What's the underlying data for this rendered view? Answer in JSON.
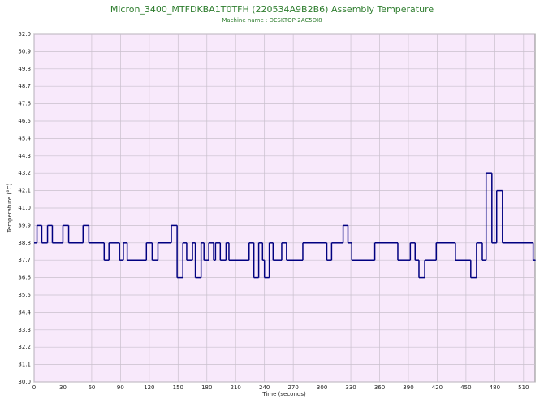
{
  "chart_data": {
    "type": "step-line",
    "title": "Micron_3400_MTFDKBA1T0TFH (220534A9B2B6) Assembly Temperature",
    "subtitle": "Machine name : DESKTOP-2AC5DI8",
    "x_label": "Time (seconds)",
    "y_label": "Temperature (°C)",
    "xlim": [
      0,
      522
    ],
    "ylim": [
      30,
      52
    ],
    "xticks": [
      0,
      30,
      60,
      90,
      120,
      150,
      180,
      210,
      240,
      270,
      300,
      330,
      360,
      390,
      420,
      450,
      480,
      510
    ],
    "yticks": [
      {
        "value": 30,
        "label": "30.0"
      },
      31.1,
      32.2,
      33.3,
      34.4,
      35.5,
      36.6,
      37.7,
      38.8,
      39.9,
      {
        "value": 41,
        "label": "41.0"
      },
      42.1,
      43.2,
      44.3,
      45.4,
      46.5,
      47.6,
      48.7,
      49.8,
      50.9,
      {
        "value": 52,
        "label": "52.0"
      }
    ],
    "grid": true,
    "color": "#000080",
    "x": [
      0,
      3,
      8,
      14,
      19,
      30,
      36,
      51,
      57,
      73,
      78,
      89,
      93,
      97,
      117,
      123,
      129,
      143,
      149,
      155,
      159,
      165,
      168,
      174,
      177,
      182,
      187,
      189,
      194,
      200,
      203,
      224,
      229,
      234,
      238,
      240,
      245,
      249,
      258,
      263,
      280,
      305,
      310,
      322,
      327,
      331,
      355,
      379,
      392,
      397,
      401,
      407,
      419,
      439,
      455,
      461,
      467,
      471,
      477,
      482,
      488,
      520,
      522
    ],
    "values": [
      38.8,
      39.9,
      38.8,
      39.9,
      38.8,
      39.9,
      38.8,
      39.9,
      38.8,
      37.7,
      38.8,
      37.7,
      38.8,
      37.7,
      38.8,
      37.7,
      38.8,
      39.9,
      36.6,
      38.8,
      37.7,
      38.8,
      36.6,
      38.8,
      37.7,
      38.8,
      37.7,
      38.8,
      37.7,
      38.8,
      37.7,
      38.8,
      36.6,
      38.8,
      37.7,
      36.6,
      38.8,
      37.7,
      38.8,
      37.7,
      38.8,
      37.7,
      38.8,
      39.9,
      38.8,
      37.7,
      38.8,
      37.7,
      38.8,
      37.7,
      36.6,
      37.7,
      38.8,
      37.7,
      36.6,
      38.8,
      37.7,
      43.2,
      38.8,
      42.1,
      38.8,
      37.7,
      37.7
    ]
  }
}
